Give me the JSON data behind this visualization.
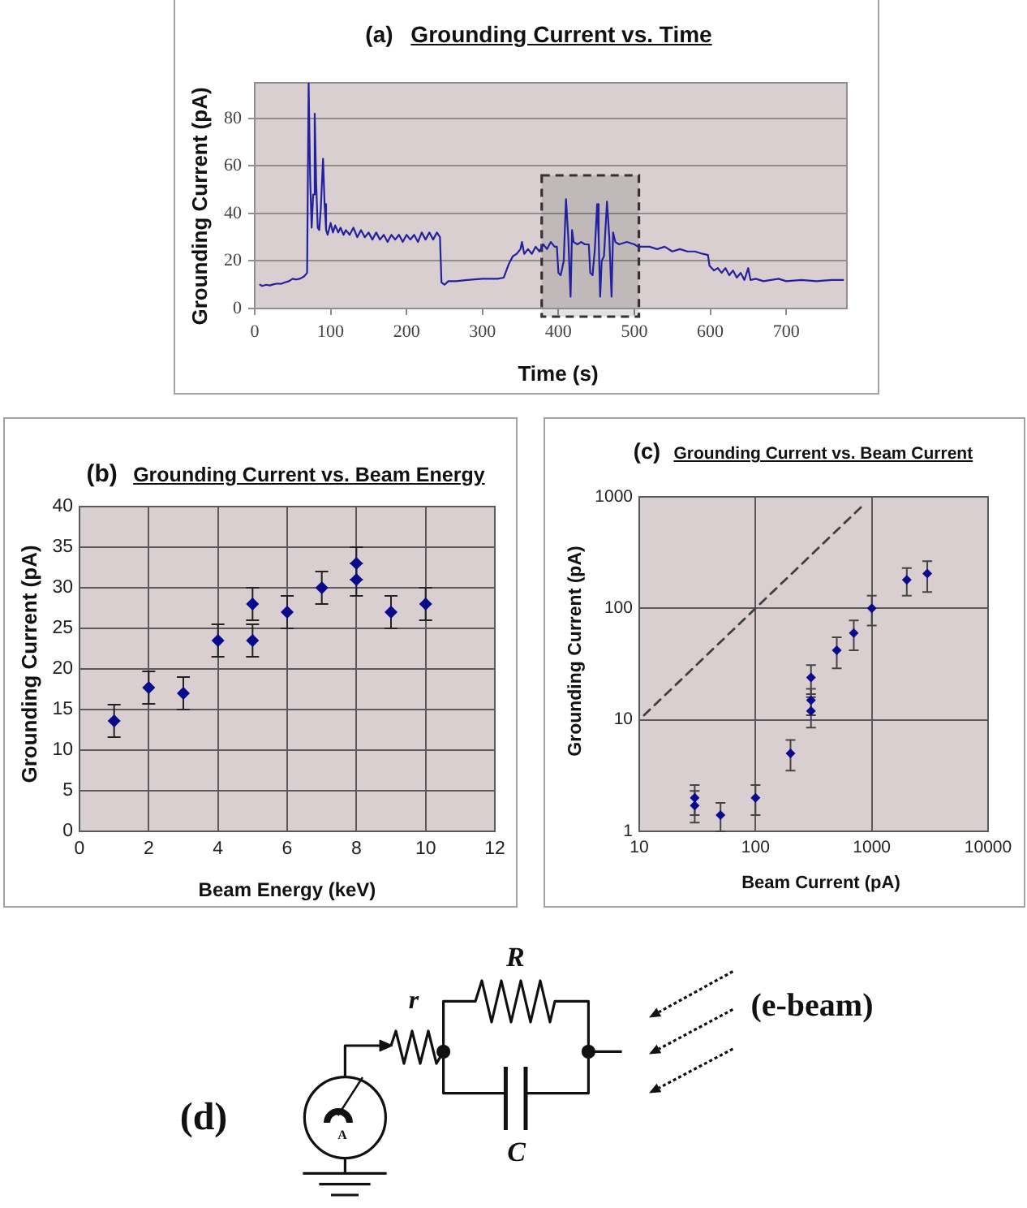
{
  "chart_data": [
    {
      "type": "line",
      "title": "(a) Grounding Current vs. Time",
      "xlabel": "Time (s)",
      "ylabel": "Grounding Current (pA)",
      "x": [
        7,
        10,
        15,
        20,
        25,
        30,
        35,
        40,
        45,
        50,
        55,
        60,
        65,
        69,
        71,
        73,
        75,
        77,
        79,
        81,
        83,
        85,
        87,
        90,
        92,
        94,
        96,
        100,
        103,
        106,
        110,
        113,
        117,
        120,
        125,
        130,
        135,
        140,
        145,
        150,
        155,
        160,
        165,
        170,
        175,
        180,
        185,
        190,
        195,
        200,
        205,
        210,
        215,
        220,
        225,
        230,
        235,
        240,
        244,
        246,
        250,
        255,
        265,
        280,
        300,
        320,
        328,
        335,
        340,
        345,
        350,
        352,
        355,
        360,
        365,
        370,
        375,
        380,
        385,
        390,
        395,
        398,
        400,
        403,
        407,
        410,
        413,
        416,
        418,
        420,
        425,
        430,
        435,
        440,
        442,
        445,
        448,
        451,
        453,
        455,
        457,
        460,
        464,
        467,
        470,
        472,
        475,
        480,
        490,
        500,
        505,
        510,
        520,
        530,
        540,
        550,
        560,
        570,
        580,
        590,
        597,
        599,
        605,
        610,
        615,
        620,
        625,
        630,
        635,
        640,
        645,
        650,
        653,
        660,
        670,
        680,
        690,
        700,
        720,
        740,
        760,
        775
      ],
      "values": [
        10,
        9.5,
        10,
        9.7,
        10.2,
        10.5,
        10.4,
        11,
        11.5,
        12.5,
        12.2,
        12.6,
        13.5,
        15,
        95,
        55,
        34,
        48,
        82,
        52,
        34,
        33,
        42,
        63,
        44,
        33,
        31,
        36,
        32,
        35,
        32,
        34,
        31,
        33,
        31,
        34,
        30,
        33,
        30,
        32,
        29,
        32,
        29,
        31,
        28,
        31,
        29,
        31,
        28,
        31,
        29,
        31,
        28,
        32,
        29,
        32,
        29,
        32,
        30,
        11,
        10,
        11.5,
        11.5,
        12,
        12.5,
        12.5,
        13,
        19,
        22,
        23,
        25,
        28,
        23,
        25,
        23,
        26,
        24,
        27,
        25,
        28,
        26,
        26,
        15,
        14,
        20,
        46,
        30,
        5,
        33,
        28,
        27,
        28,
        27,
        27,
        15,
        14,
        25,
        44,
        30,
        5,
        20,
        22,
        45,
        30,
        5,
        32,
        28,
        27,
        28,
        27,
        26,
        26,
        26,
        25,
        26,
        24,
        25,
        24,
        24,
        23,
        22.5,
        18,
        16,
        17,
        15,
        17,
        14,
        16,
        13,
        15,
        12,
        17,
        12,
        12.5,
        11.5,
        12,
        12.5,
        11.5,
        12,
        11.5,
        12,
        12
      ],
      "color": "#2222a0",
      "xlim": [
        0,
        780
      ],
      "ylim": [
        0,
        95
      ],
      "xticks": [
        0,
        100,
        200,
        300,
        400,
        500,
        600,
        700
      ],
      "yticks": [
        0,
        20,
        40,
        60,
        80
      ],
      "grid": "y",
      "bands": [
        {
          "axis": "x",
          "from": 378,
          "to": 506,
          "color": "#333333"
        }
      ]
    },
    {
      "type": "scatter",
      "title": "(b) Grounding Current vs. Beam Energy",
      "xlabel": "Beam Energy (keV)",
      "ylabel": "Grounding Current (pA)",
      "x": [
        1,
        2,
        3,
        4,
        5,
        5,
        6,
        7,
        8,
        8,
        9,
        10
      ],
      "values": [
        13.6,
        17.7,
        17,
        23.5,
        28,
        23.5,
        27,
        30,
        33,
        31,
        27,
        28
      ],
      "errors": [
        2,
        2,
        2,
        2,
        2,
        2,
        2,
        2,
        2,
        2,
        2,
        2
      ],
      "color": "#0a0a8c",
      "marker": "diamond",
      "xlim": [
        0,
        12
      ],
      "ylim": [
        0,
        40
      ],
      "xticks": [
        0,
        2,
        4,
        6,
        8,
        10,
        12
      ],
      "yticks": [
        0,
        5,
        10,
        15,
        20,
        25,
        30,
        35,
        40
      ],
      "grid": true
    },
    {
      "type": "scatter",
      "title": "(c) Grounding Current vs. Beam Current",
      "xlabel": "Beam Current (pA)",
      "ylabel": "Grounding Current (pA)",
      "log": "xy",
      "series": [
        {
          "type": "scatter",
          "color": "#0a0a8c",
          "marker": "diamond",
          "x": [
            30,
            30,
            50,
            100,
            200,
            300,
            300,
            300,
            500,
            700,
            1000,
            2000,
            3000
          ],
          "values": [
            2.0,
            1.7,
            1.4,
            2.0,
            5,
            24,
            15,
            12,
            42,
            60,
            100,
            180,
            205
          ],
          "errors": [
            [
              1.4,
              2.6
            ],
            [
              1.2,
              2.3
            ],
            [
              1.0,
              1.8
            ],
            [
              1.4,
              2.6
            ],
            [
              3.5,
              6.6
            ],
            [
              17,
              31
            ],
            [
              11,
              19
            ],
            [
              8.5,
              16
            ],
            [
              29,
              55
            ],
            [
              42,
              78
            ],
            [
              70,
              130
            ],
            [
              130,
              230
            ],
            [
              140,
              265
            ]
          ]
        },
        {
          "type": "line",
          "color": "#404040",
          "line_style": "dashed",
          "x": [
            11,
            850
          ],
          "values": [
            11,
            850
          ]
        }
      ],
      "xlim": [
        10,
        10000
      ],
      "ylim": [
        1,
        1000
      ],
      "xticks": [
        10,
        100,
        1000,
        10000
      ],
      "yticks": [
        1,
        10,
        100,
        1000
      ],
      "grid": true
    },
    {
      "type": "other",
      "title": "(d)",
      "annotations": [
        "r",
        "R",
        "C",
        "A",
        "(e-beam)"
      ]
    }
  ]
}
